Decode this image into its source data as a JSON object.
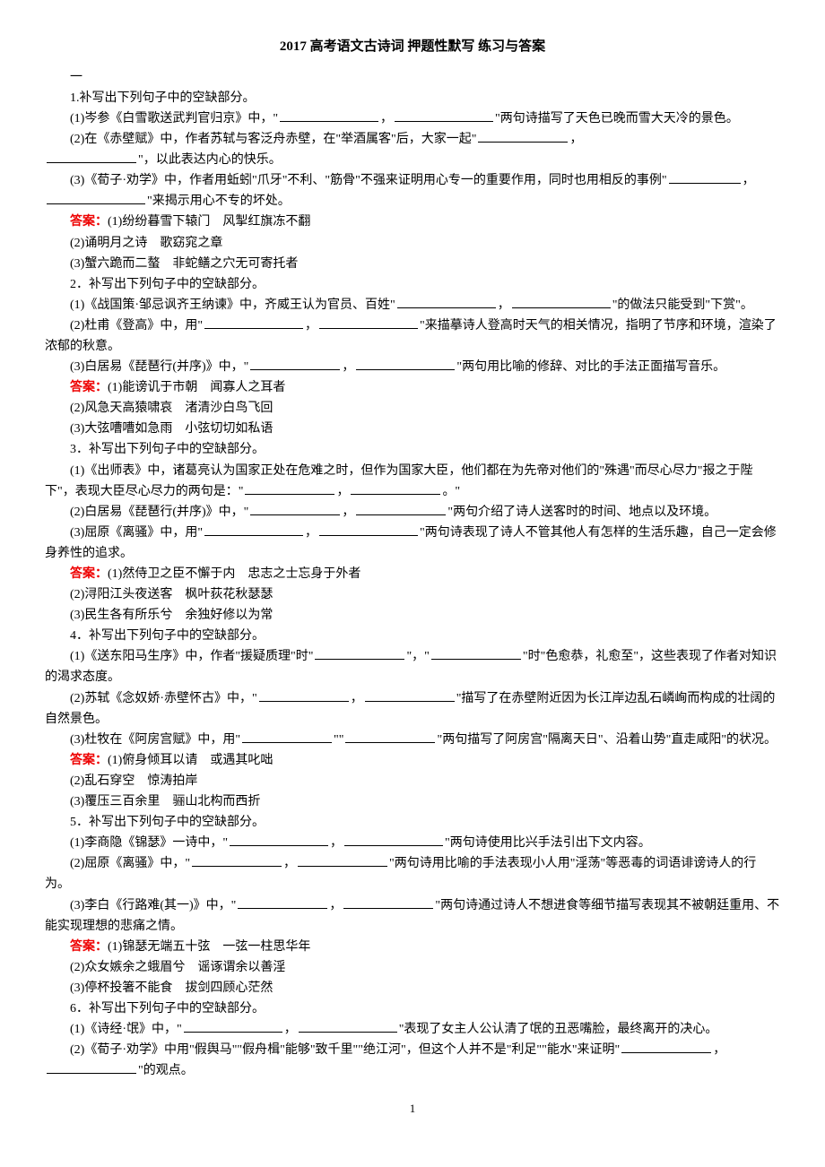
{
  "title": "2017 高考语文古诗词 押题性默写 练习与答案",
  "sec1": "一",
  "q1": {
    "head": "1.补写出下列句子中的空缺部分。",
    "p1a": "(1)岑参《白雪歌送武判官归京》中，\"",
    "p1b": "，",
    "p1c": "\"两句诗描写了天色已晚而雪大天冷的景色。",
    "p2a": "(2)在《赤壁赋》中，作者苏轼与客泛舟赤壁，在\"举酒属客\"后，大家一起\"",
    "p2b": "，",
    "p2c": "\"，以此表达内心的快乐。",
    "p3a": "(3)《荀子·劝学》中，作者用蚯蚓\"爪牙\"不利、\"筋骨\"不强来证明用心专一的重要作用，同时也用相反的事例\"",
    "p3b": "，",
    "p3c": "\"来揭示用心不专的坏处。",
    "ans_label": "答案：",
    "a1": "(1)纷纷暮雪下辕门　风掣红旗冻不翻",
    "a2": "(2)诵明月之诗　歌窈窕之章",
    "a3": "(3)蟹六跪而二螯　非蛇鳝之穴无可寄托者"
  },
  "q2": {
    "head": "2．补写出下列句子中的空缺部分。",
    "p1a": "(1)《战国策·邹忌讽齐王纳谏》中，齐威王认为官员、百姓\"",
    "p1b": "，",
    "p1c": "\"的做法只能受到\"下赏\"。",
    "p2a": "(2)杜甫《登高》中，用\"",
    "p2b": "，",
    "p2c": "\"来描摹诗人登高时天气的相关情况，指明了节序和环境，渲染了浓郁的秋意。",
    "p3a": "(3)白居易《琵琶行(并序)》中，\"",
    "p3b": "，",
    "p3c": "\"两句用比喻的修辞、对比的手法正面描写音乐。",
    "ans_label": "答案：",
    "a1": "(1)能谤讥于市朝　闻寡人之耳者",
    "a2": "(2)风急天高猿啸哀　渚清沙白鸟飞回",
    "a3": "(3)大弦嘈嘈如急雨　小弦切切如私语"
  },
  "q3": {
    "head": "3．补写出下列句子中的空缺部分。",
    "p1a": "(1)《出师表》中，诸葛亮认为国家正处在危难之时，但作为国家大臣，他们都在为先帝对他们的\"殊遇\"而尽心尽力\"报之于陛下\"，表现大臣尽心尽力的两句是：\"",
    "p1b": "，",
    "p1c": "。\"",
    "p2a": "(2)白居易《琵琶行(并序)》中，\"",
    "p2b": "，",
    "p2c": "\"两句介绍了诗人送客时的时间、地点以及环境。",
    "p3a": "(3)屈原《离骚》中，用\"",
    "p3b": "，",
    "p3c": "\"两句诗表现了诗人不管其他人有怎样的生活乐趣，自己一定会修身养性的追求。",
    "ans_label": "答案：",
    "a1": "(1)然侍卫之臣不懈于内　忠志之士忘身于外者",
    "a2": "(2)浔阳江头夜送客　枫叶荻花秋瑟瑟",
    "a3": "(3)民生各有所乐兮　余独好修以为常"
  },
  "q4": {
    "head": "4．补写出下列句子中的空缺部分。",
    "p1a": "(1)《送东阳马生序》中，作者\"援疑质理\"时\"",
    "p1b": "\"，\"",
    "p1c": "\"时\"色愈恭，礼愈至\"，这些表现了作者对知识的渴求态度。",
    "p2a": "(2)苏轼《念奴娇·赤壁怀古》中，\"",
    "p2b": "，",
    "p2c": "\"描写了在赤壁附近因为长江岸边乱石嶙峋而构成的壮阔的自然景色。",
    "p3a": "(3)杜牧在《阿房宫赋》中，用\"",
    "p3b": "\"\"",
    "p3c": "\"两句描写了阿房宫\"隔离天日\"、沿着山势\"直走咸阳\"的状况。",
    "ans_label": "答案：",
    "a1": "(1)俯身倾耳以请　或遇其叱咄",
    "a2": "(2)乱石穿空　惊涛拍岸",
    "a3": "(3)覆压三百余里　骊山北构而西折"
  },
  "q5": {
    "head": "5．补写出下列句子中的空缺部分。",
    "p1a": "(1)李商隐《锦瑟》一诗中，\"",
    "p1b": "，",
    "p1c": "\"两句诗使用比兴手法引出下文内容。",
    "p2a": "(2)屈原《离骚》中，\"",
    "p2b": "，",
    "p2c": "\"两句诗用比喻的手法表现小人用\"淫荡\"等恶毒的词语诽谤诗人的行为。",
    "p3a": "(3)李白《行路难(其一)》中，\"",
    "p3b": "，",
    "p3c": "\"两句诗通过诗人不想进食等细节描写表现其不被朝廷重用、不能实现理想的悲痛之情。",
    "ans_label": "答案：",
    "a1": "(1)锦瑟无端五十弦　一弦一柱思华年",
    "a2": "(2)众女嫉余之蛾眉兮　谣诼谓余以善淫",
    "a3": "(3)停杯投箸不能食　拔剑四顾心茫然"
  },
  "q6": {
    "head": "6．补写出下列句子中的空缺部分。",
    "p1a": "(1)《诗经·氓》中，\"",
    "p1b": "，",
    "p1c": "\"表现了女主人公认清了氓的丑恶嘴脸，最终离开的决心。",
    "p2a": "(2)《荀子·劝学》中用\"假舆马\"\"假舟楫\"能够\"致千里\"\"绝江河\"，但这个人并不是\"利足\"\"能水\"来证明\"",
    "p2b": "，",
    "p2c": "\"的观点。"
  },
  "page_num": "1"
}
